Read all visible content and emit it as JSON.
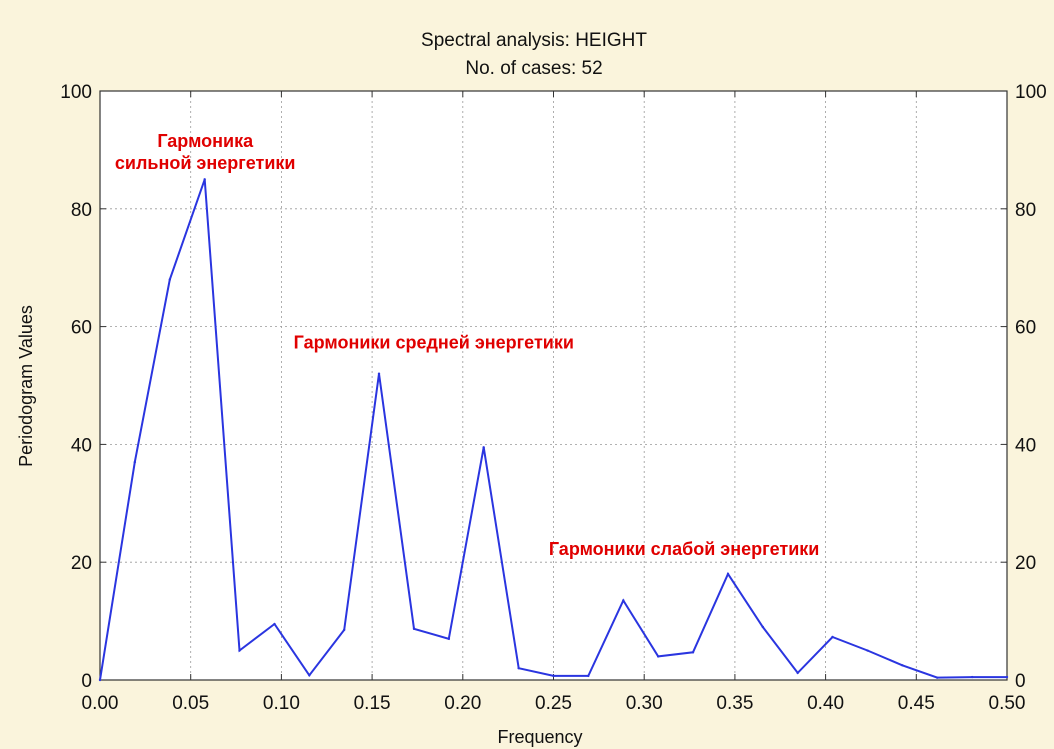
{
  "chart_data": {
    "type": "line",
    "title": "Spectral analysis: HEIGHT",
    "subtitle": "No. of cases: 52",
    "xlabel": "Frequency",
    "ylabel": "Periodogram Values",
    "xlim": [
      0,
      0.5
    ],
    "ylim": [
      0,
      100
    ],
    "x_ticks": [
      "0.00",
      "0.05",
      "0.10",
      "0.15",
      "0.20",
      "0.25",
      "0.30",
      "0.35",
      "0.40",
      "0.45",
      "0.50"
    ],
    "y_ticks": [
      "0",
      "20",
      "40",
      "60",
      "80",
      "100"
    ],
    "grid": true,
    "series": [
      {
        "color": "#2a35e0",
        "x": [
          0.0,
          0.0192,
          0.0385,
          0.0577,
          0.0769,
          0.0962,
          0.1154,
          0.1346,
          0.1538,
          0.1731,
          0.1923,
          0.2115,
          0.2308,
          0.25,
          0.2692,
          0.2885,
          0.3077,
          0.3269,
          0.3462,
          0.3654,
          0.3846,
          0.4038,
          0.4231,
          0.4423,
          0.4615,
          0.4808,
          0.5
        ],
        "values": [
          0,
          37,
          68,
          85,
          5,
          9.5,
          0.8,
          8.5,
          52,
          8.7,
          7,
          39.5,
          2,
          0.7,
          0.7,
          13.5,
          4,
          4.7,
          18,
          9,
          1.2,
          7.3,
          5,
          2.5,
          0.4,
          0.5,
          0.5
        ]
      }
    ],
    "annotations": [
      {
        "lines": [
          "Гармоника",
          "сильной энергетики"
        ],
        "x": 0.058,
        "y": 90.5
      },
      {
        "lines": [
          "Гармоники средней энергетики"
        ],
        "x": 0.184,
        "y": 56.3
      },
      {
        "lines": [
          "Гармоники слабой энергетики"
        ],
        "x": 0.322,
        "y": 21.2
      }
    ]
  }
}
